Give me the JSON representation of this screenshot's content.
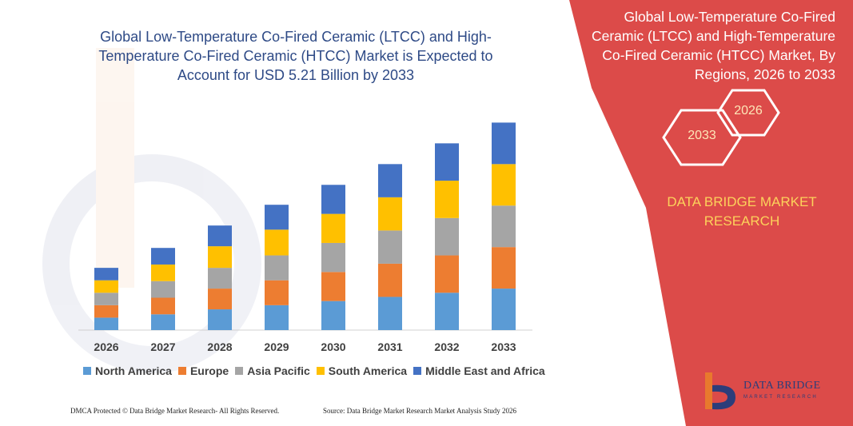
{
  "title": "Global Low-Temperature Co-Fired Ceramic (LTCC) and High-Temperature Co-Fired Ceramic (HTCC) Market is Expected to Account for USD 5.21 Billion by 2033",
  "panel": {
    "title": "Global Low-Temperature Co-Fired Ceramic (LTCC) and High-Temperature Co-Fired Ceramic (HTCC) Market, By Regions, 2026 to 2033",
    "hex_year_1": "2026",
    "hex_year_2": "2033",
    "brand": "DATA BRIDGE MARKET RESEARCH",
    "color": "#dc4b49"
  },
  "logo": {
    "name": "DATA BRIDGE",
    "tagline": "MARKET RESEARCH"
  },
  "footer": {
    "left": "DMCA Protected © Data Bridge Market Research- All Rights Reserved.",
    "right": "Source: Data Bridge Market Research Market Analysis Study 2026"
  },
  "chart_data": {
    "type": "bar",
    "stacked": true,
    "categories": [
      "2026",
      "2027",
      "2028",
      "2029",
      "2030",
      "2031",
      "2032",
      "2033"
    ],
    "series": [
      {
        "name": "North America",
        "color": "#5b9bd5",
        "values": [
          15,
          19,
          25,
          30,
          35,
          40,
          45,
          50
        ]
      },
      {
        "name": "Europe",
        "color": "#ed7d31",
        "values": [
          15,
          20,
          25,
          30,
          35,
          40,
          45,
          50
        ]
      },
      {
        "name": "Asia Pacific",
        "color": "#a5a5a5",
        "values": [
          15,
          20,
          25,
          30,
          35,
          40,
          45,
          50
        ]
      },
      {
        "name": "South America",
        "color": "#ffc000",
        "values": [
          15,
          20,
          26,
          31,
          35,
          40,
          45,
          50
        ]
      },
      {
        "name": "Middle East and Africa",
        "color": "#4472c4",
        "values": [
          15,
          20,
          25,
          30,
          35,
          40,
          45,
          50
        ]
      }
    ],
    "ylim": [
      0,
      260
    ],
    "grid": false,
    "legend": "bottom"
  }
}
